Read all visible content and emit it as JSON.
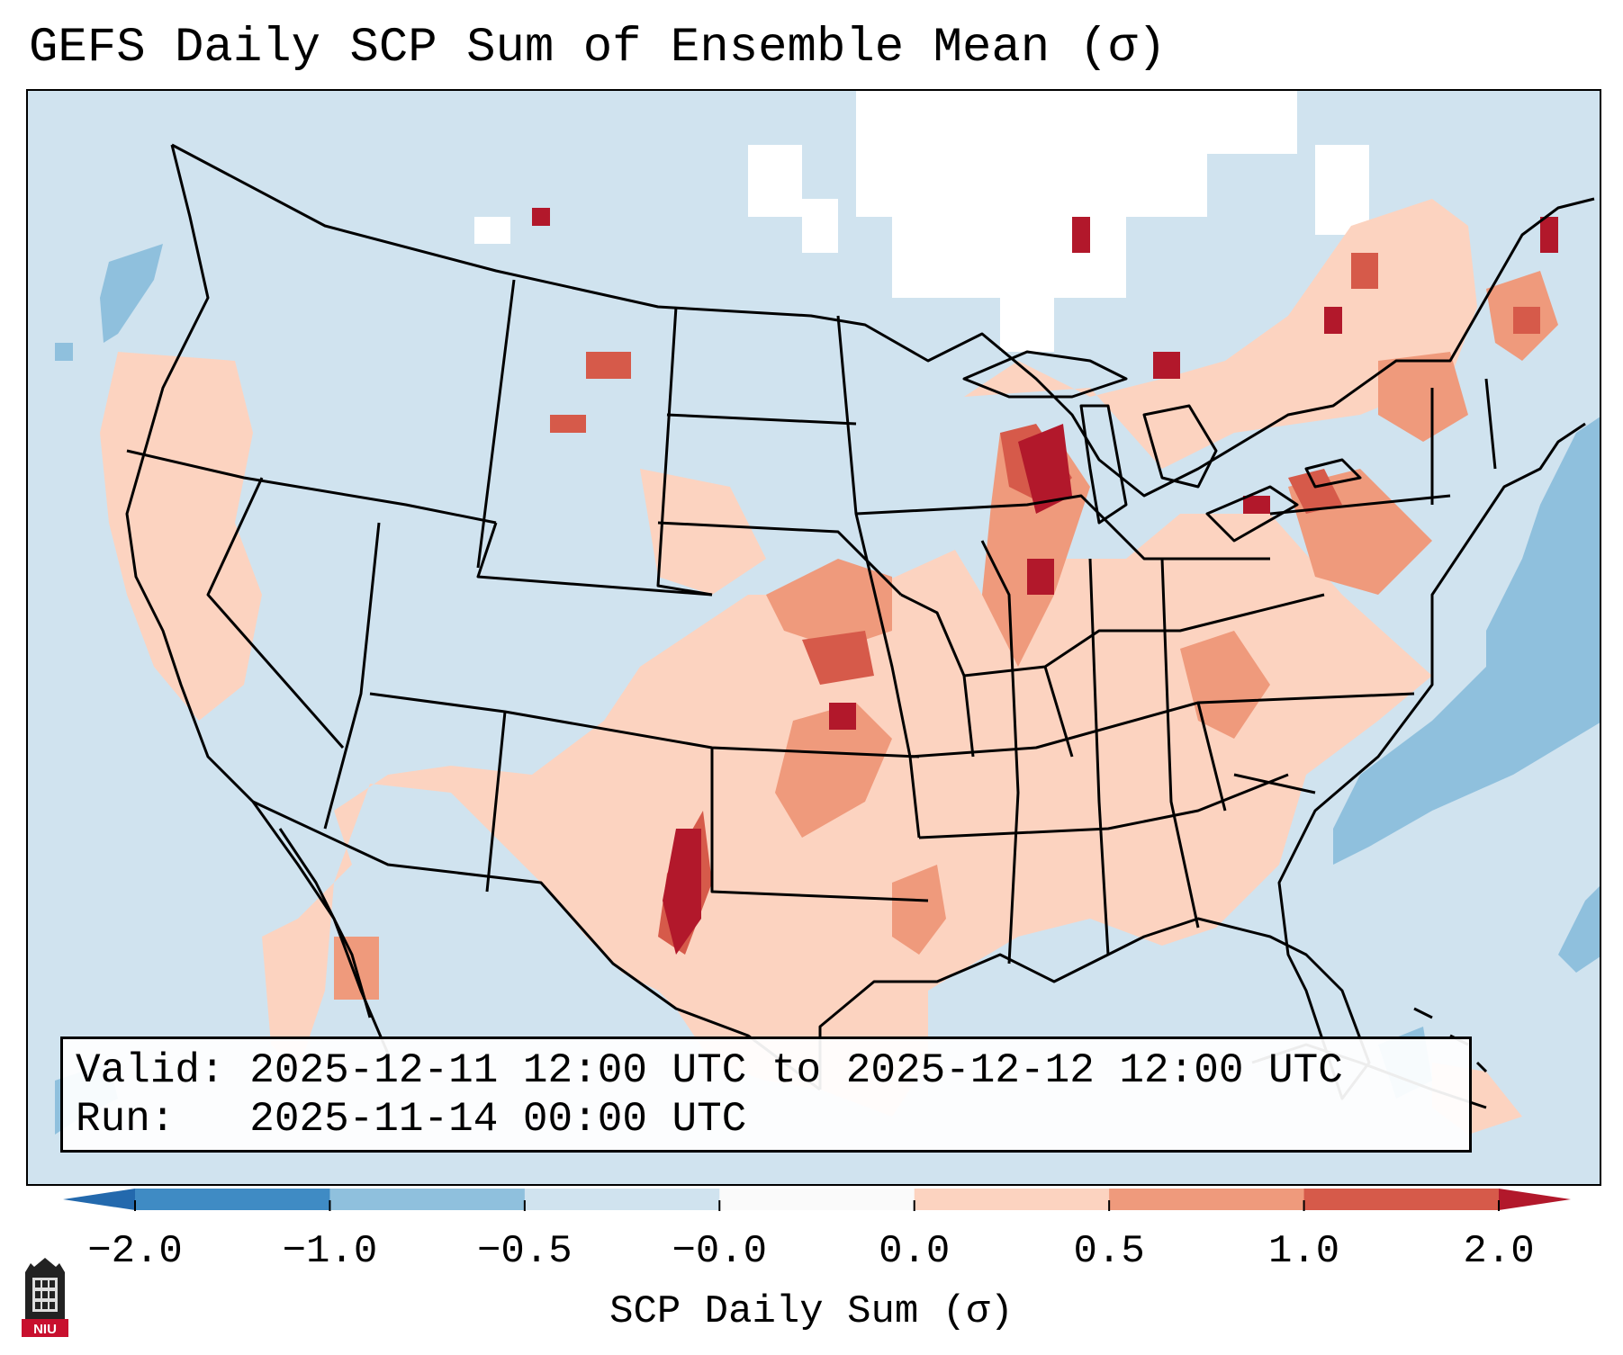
{
  "title": "GEFS Daily SCP Sum of Ensemble Mean (σ)",
  "info": {
    "valid_label": "Valid:",
    "valid_value": "2025-12-11 12:00 UTC to 2025-12-12 12:00 UTC",
    "run_label": "Run:",
    "run_value": "2025-11-14 00:00 UTC"
  },
  "colorbar": {
    "label": "SCP Daily Sum (σ)",
    "ticks": [
      "−2.0",
      "−1.0",
      "−0.5",
      "−0.0",
      "0.0",
      "0.5",
      "1.0",
      "2.0"
    ],
    "colors": [
      "#3f8bc4",
      "#8fc0dd",
      "#d0e3ef",
      "#fafafa",
      "#fcd3c0",
      "#ef9a7c",
      "#d65a4a"
    ],
    "under_color": "#2369ad",
    "over_color": "#b2182b"
  },
  "map": {
    "ocean_color": "#d0e3ef",
    "land_color": "#d0e3ef",
    "border_color": "#000000",
    "weak_positive_color": "#fcd3c0",
    "moderate_color": "#ef9a7c",
    "strong_color": "#d65a4a",
    "extreme_color": "#b2182b",
    "negative_color": "#8fc0dd",
    "null_color": "#ffffff"
  },
  "logo": {
    "text": "NIU",
    "color": "#c8102e"
  }
}
